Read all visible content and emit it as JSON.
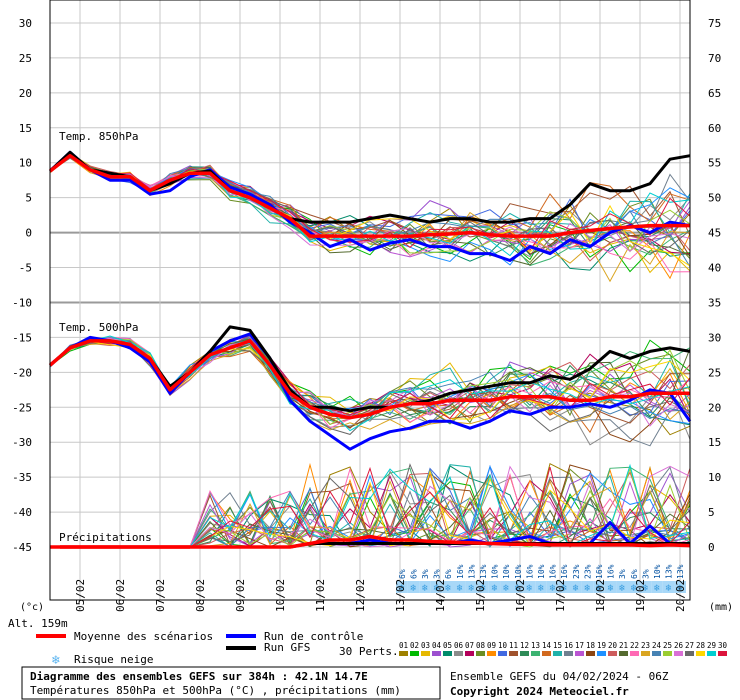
{
  "chart_data": {
    "type": "line",
    "x_dates": [
      "05/02",
      "06/02",
      "07/02",
      "08/02",
      "09/02",
      "10/02",
      "11/02",
      "12/02",
      "13/02",
      "14/02",
      "15/02",
      "16/02",
      "17/02",
      "18/02",
      "19/02",
      "20/02"
    ],
    "xlim": [
      "04/02 06Z",
      "20/02 06Z"
    ],
    "y_left_ticks": [
      30,
      25,
      20,
      15,
      10,
      5,
      0,
      -5,
      -10,
      -15,
      -20,
      -25,
      -30,
      -35,
      -40,
      -45
    ],
    "y_right_ticks": [
      75,
      70,
      65,
      60,
      55,
      50,
      45,
      40,
      35,
      30,
      25,
      20,
      15,
      10,
      5,
      0
    ],
    "ylim_left": [
      -45,
      30
    ],
    "ylim_right": [
      0,
      75
    ],
    "ylabel_left": "(°c)",
    "ylabel_right": "(mm)",
    "altitude": "Alt. 159m",
    "section_labels": [
      "Temp. 850hPa",
      "Temp. 500hPa",
      "Précipitations"
    ],
    "x_hours": [
      0,
      12,
      24,
      36,
      48,
      60,
      72,
      84,
      96,
      108,
      120,
      132,
      144,
      156,
      168,
      180,
      192,
      204,
      216,
      228,
      240,
      252,
      264,
      276,
      288,
      300,
      312,
      324,
      336,
      348,
      360,
      372,
      384
    ],
    "series": [
      {
        "name": "Moyenne des scénarios",
        "color": "#ff0000",
        "t850": [
          8.8,
          11,
          9,
          8,
          8,
          6,
          7.5,
          8.5,
          8.5,
          6,
          5,
          3.5,
          2,
          -0.5,
          -0.5,
          -0.5,
          -0.5,
          -0.5,
          -0.5,
          -0.3,
          -0.2,
          0,
          -0.3,
          -0.5,
          -0.5,
          -0.5,
          0,
          0.3,
          0.6,
          0.8,
          1,
          1,
          1
        ],
        "t500": [
          -19,
          -16.5,
          -15.5,
          -15.5,
          -16,
          -18,
          -22.5,
          -20,
          -17.5,
          -16.5,
          -15.5,
          -19,
          -23,
          -25,
          -26,
          -26.5,
          -26,
          -25,
          -24.5,
          -24.5,
          -24,
          -24,
          -24,
          -23.5,
          -23.5,
          -23.5,
          -24,
          -24,
          -23.5,
          -23.5,
          -23,
          -23,
          -23
        ],
        "precip": [
          0,
          0,
          0,
          0,
          0,
          0,
          0,
          0,
          0,
          0,
          0,
          0,
          0,
          0.5,
          1,
          1,
          1.5,
          1,
          1,
          0.8,
          0.7,
          0.6,
          0.5,
          0.4,
          0.4,
          0.3,
          0.3,
          0.3,
          0.3,
          0.3,
          0.2,
          0.3,
          0.2
        ]
      },
      {
        "name": "Run de contrôle",
        "color": "#0000ff",
        "t850": [
          8.8,
          11.5,
          9,
          7.5,
          7.5,
          5.5,
          6,
          8,
          9,
          6.5,
          5.5,
          4,
          1.5,
          0,
          -2,
          -1,
          -2.5,
          -1.5,
          -1,
          -2,
          -2,
          -3,
          -3,
          -4,
          -2,
          -3,
          -1,
          -2,
          0,
          1,
          0,
          1.5,
          1
        ],
        "t500": [
          -19,
          -16.5,
          -15,
          -15.5,
          -16.5,
          -18.5,
          -23,
          -20,
          -17,
          -15.5,
          -14.5,
          -18,
          -24,
          -27,
          -29,
          -31,
          -29.5,
          -28.5,
          -28,
          -27,
          -27,
          -28,
          -27,
          -25.5,
          -26,
          -25,
          -25,
          -24.5,
          -25,
          -24,
          -22.5,
          -23,
          -27
        ],
        "precip": [
          0,
          0,
          0,
          0,
          0,
          0,
          0,
          0,
          0,
          0,
          0,
          0,
          0,
          0.5,
          0.5,
          0.5,
          1,
          0.5,
          0.5,
          0.5,
          0.5,
          1,
          0.5,
          1,
          1.5,
          0.5,
          0.5,
          0.5,
          3.5,
          0.5,
          3,
          0.5,
          0.5
        ]
      },
      {
        "name": "Run GFS",
        "color": "#000000",
        "t850": [
          8.8,
          11.5,
          9,
          8.5,
          8,
          6,
          7,
          8.5,
          8.8,
          6,
          5,
          3.5,
          2,
          1.5,
          1.5,
          1.5,
          2,
          2.5,
          2,
          1.5,
          2,
          2,
          1.5,
          1.5,
          2,
          2,
          4,
          7,
          6,
          6,
          7,
          10.5,
          11
        ],
        "t500": [
          -19,
          -16.5,
          -15.5,
          -15.5,
          -16,
          -18,
          -22,
          -20,
          -17,
          -13.5,
          -14,
          -18,
          -22.5,
          -25,
          -25,
          -25.5,
          -25,
          -25,
          -24.5,
          -24,
          -23,
          -22.5,
          -22,
          -21.5,
          -21.5,
          -20.5,
          -21,
          -19.5,
          -17,
          -18,
          -17,
          -16.5,
          -17
        ],
        "precip": [
          0,
          0,
          0,
          0,
          0,
          0,
          0,
          0,
          0,
          0,
          0,
          0,
          0,
          0.5,
          0.5,
          0.5,
          0.5,
          0.5,
          0.5,
          0.5,
          0.5,
          0.5,
          0.5,
          0.5,
          0.5,
          0.5,
          0.5,
          0.5,
          0.5,
          0.5,
          0.5,
          0.5,
          0.5
        ]
      }
    ],
    "snow_risk": [
      "6%",
      "6%",
      "3%",
      "3%",
      "6%",
      "16%",
      "13%",
      "13%",
      "10%",
      "10%",
      "10%",
      "16%",
      "10%",
      "16%",
      "16%",
      "23%",
      "23%",
      "16%",
      "16%",
      "3%",
      "6%",
      "3%",
      "10%",
      "13%",
      "13%"
    ],
    "legend": {
      "mean": "Moyenne des scénarios",
      "control": "Run de contrôle",
      "gfs": "Run GFS",
      "snow": "Risque neige",
      "perts_label": "30 Perts."
    },
    "perturbations": {
      "labels": [
        "01",
        "02",
        "03",
        "04",
        "05",
        "06",
        "07",
        "08",
        "09",
        "10",
        "11",
        "12",
        "13",
        "14",
        "15",
        "16",
        "17",
        "18",
        "19",
        "20",
        "21",
        "22",
        "23",
        "24",
        "25",
        "26",
        "27",
        "28",
        "29",
        "30"
      ],
      "colors": [
        "#9e8100",
        "#00ba00",
        "#e6b800",
        "#9c50d0",
        "#008b6b",
        "#8b8b8b",
        "#b4005a",
        "#6b8e23",
        "#ff8c00",
        "#4169e1",
        "#a0522d",
        "#2e8b57",
        "#3cb371",
        "#d2691e",
        "#20b2aa",
        "#708090",
        "#ba55d3",
        "#8b4513",
        "#1e90ff",
        "#cd5c5c",
        "#556b2f",
        "#ff69b4",
        "#daa520",
        "#4682b4",
        "#9acd32",
        "#da70d6",
        "#696969",
        "#ffd700",
        "#00ced1",
        "#dc143c"
      ]
    },
    "footer": {
      "title": "Diagramme des ensembles GEFS sur 384h : 42.1N 14.7E",
      "subtitle": "Températures 850hPa et 500hPa (°C) , précipitations (mm)",
      "run": "Ensemble GEFS du 04/02/2024 - 06Z",
      "copyright": "Copyright 2024 Meteociel.fr"
    }
  }
}
